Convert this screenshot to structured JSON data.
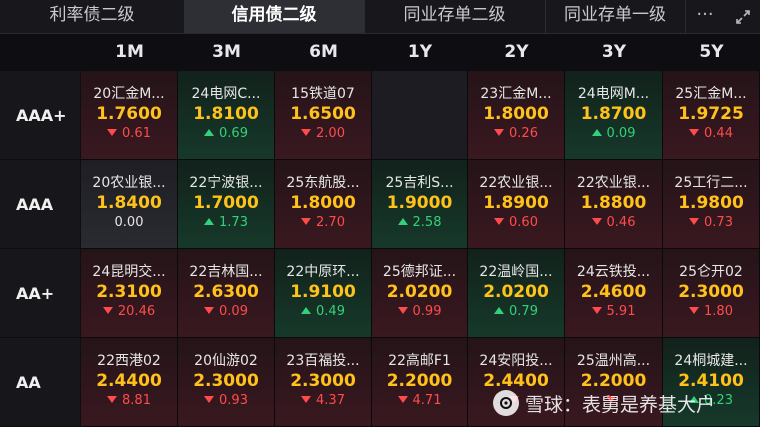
{
  "tabs": [
    {
      "label": "利率债二级",
      "active": false
    },
    {
      "label": "信用债二级",
      "active": true
    },
    {
      "label": "同业存单二级",
      "active": false
    },
    {
      "label": "同业存单一级",
      "active": false
    }
  ],
  "more_icon": "···",
  "columns": [
    "1M",
    "3M",
    "6M",
    "1Y",
    "2Y",
    "3Y",
    "5Y"
  ],
  "rows": [
    {
      "label": "AAA+",
      "cells": [
        {
          "name": "20汇金M...",
          "rate": "1.7600",
          "change": "0.61",
          "dir": "down"
        },
        {
          "name": "24电网C...",
          "rate": "1.8100",
          "change": "0.69",
          "dir": "up"
        },
        {
          "name": "15铁道07",
          "rate": "1.6500",
          "change": "2.00",
          "dir": "down"
        },
        null,
        {
          "name": "23汇金M...",
          "rate": "1.8000",
          "change": "0.26",
          "dir": "down"
        },
        {
          "name": "24电网M...",
          "rate": "1.8700",
          "change": "0.09",
          "dir": "up"
        },
        {
          "name": "25汇金M...",
          "rate": "1.9725",
          "change": "0.44",
          "dir": "down"
        }
      ]
    },
    {
      "label": "AAA",
      "cells": [
        {
          "name": "20农业银...",
          "rate": "1.8400",
          "change": "0.00",
          "dir": "flat"
        },
        {
          "name": "22宁波银...",
          "rate": "1.7000",
          "change": "1.73",
          "dir": "up"
        },
        {
          "name": "25东航股...",
          "rate": "1.8000",
          "change": "2.70",
          "dir": "down"
        },
        {
          "name": "25吉利S...",
          "rate": "1.9000",
          "change": "2.58",
          "dir": "up"
        },
        {
          "name": "22农业银...",
          "rate": "1.8900",
          "change": "0.60",
          "dir": "down"
        },
        {
          "name": "22农业银...",
          "rate": "1.8800",
          "change": "0.46",
          "dir": "down"
        },
        {
          "name": "25工行二...",
          "rate": "1.9800",
          "change": "0.73",
          "dir": "down"
        }
      ]
    },
    {
      "label": "AA+",
      "cells": [
        {
          "name": "24昆明交...",
          "rate": "2.3100",
          "change": "20.46",
          "dir": "down"
        },
        {
          "name": "22吉林国...",
          "rate": "2.6300",
          "change": "0.09",
          "dir": "down"
        },
        {
          "name": "22中原环...",
          "rate": "1.9100",
          "change": "0.49",
          "dir": "up"
        },
        {
          "name": "25德邦证...",
          "rate": "2.0200",
          "change": "0.99",
          "dir": "down"
        },
        {
          "name": "22温岭国...",
          "rate": "2.0200",
          "change": "0.79",
          "dir": "up"
        },
        {
          "name": "24云铁投...",
          "rate": "2.4600",
          "change": "5.91",
          "dir": "down"
        },
        {
          "name": "25仑开02",
          "rate": "2.3000",
          "change": "1.80",
          "dir": "down"
        }
      ]
    },
    {
      "label": "AA",
      "cells": [
        {
          "name": "22西港02",
          "rate": "2.4400",
          "change": "8.81",
          "dir": "down"
        },
        {
          "name": "20仙游02",
          "rate": "2.3000",
          "change": "0.93",
          "dir": "down"
        },
        {
          "name": "23百福投...",
          "rate": "2.3000",
          "change": "4.37",
          "dir": "down"
        },
        {
          "name": "22高邮F1",
          "rate": "2.2000",
          "change": "4.71",
          "dir": "down"
        },
        {
          "name": "24安阳投...",
          "rate": "2.4400",
          "change": "",
          "dir": "down"
        },
        {
          "name": "25温州高...",
          "rate": "2.2000",
          "change": "",
          "dir": "down"
        },
        {
          "name": "24桐城建...",
          "rate": "2.4100",
          "change": "0.23",
          "dir": "up"
        }
      ]
    }
  ],
  "watermark": {
    "text": "雪球：表舅是养基大户"
  }
}
